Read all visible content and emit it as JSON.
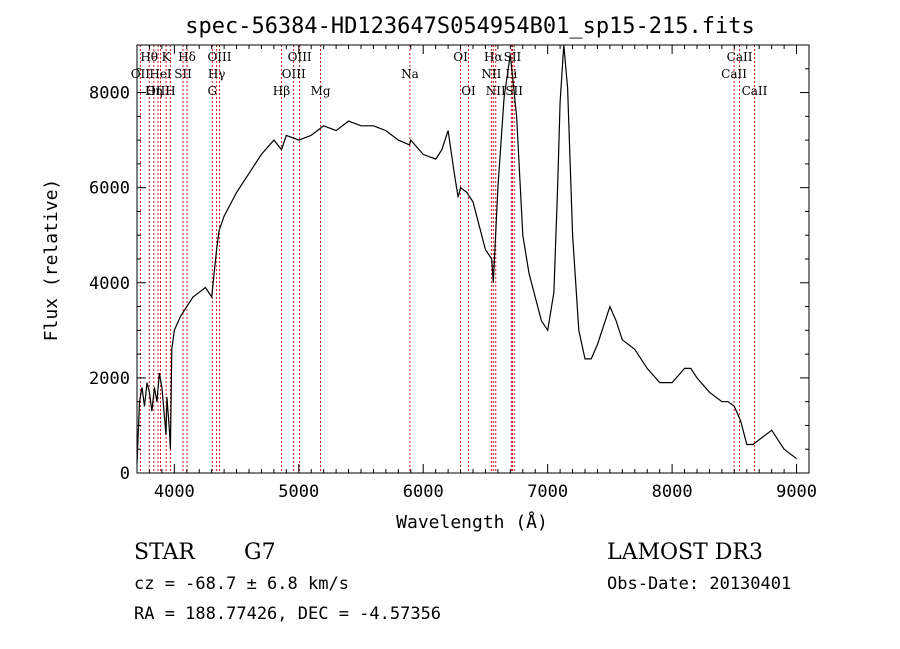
{
  "chart_data": {
    "type": "line",
    "title": "spec-56384-HD123647S054954B01_sp15-215.fits",
    "xlabel": "Wavelength (Å)",
    "ylabel": "Flux (relative)",
    "xlim": [
      3700,
      9100
    ],
    "ylim": [
      0,
      9000
    ],
    "x_ticks": [
      4000,
      5000,
      6000,
      7000,
      8000,
      9000
    ],
    "y_ticks": [
      0,
      2000,
      4000,
      6000,
      8000
    ],
    "grid": false,
    "line_color": "#000000",
    "marker_color": "#c00000",
    "spectrum": {
      "x": [
        3700,
        3720,
        3740,
        3760,
        3780,
        3800,
        3820,
        3840,
        3860,
        3880,
        3900,
        3920,
        3933,
        3940,
        3960,
        3968,
        3980,
        4000,
        4050,
        4100,
        4150,
        4200,
        4250,
        4300,
        4340,
        4360,
        4400,
        4500,
        4600,
        4700,
        4800,
        4861,
        4900,
        5000,
        5100,
        5200,
        5300,
        5400,
        5500,
        5600,
        5700,
        5800,
        5890,
        5900,
        6000,
        6100,
        6150,
        6200,
        6250,
        6280,
        6300,
        6350,
        6400,
        6450,
        6500,
        6550,
        6563,
        6600,
        6650,
        6700,
        6750,
        6800,
        6850,
        6900,
        6950,
        7000,
        7050,
        7080,
        7100,
        7130,
        7160,
        7200,
        7250,
        7300,
        7350,
        7400,
        7450,
        7500,
        7550,
        7600,
        7700,
        7800,
        7900,
        8000,
        8100,
        8150,
        8200,
        8300,
        8400,
        8450,
        8500,
        8550,
        8600,
        8650,
        8700,
        8800,
        8850,
        8900,
        9000
      ],
      "y": [
        200,
        1500,
        1800,
        1400,
        1900,
        1700,
        1300,
        1800,
        1500,
        2100,
        1800,
        1200,
        800,
        1600,
        900,
        500,
        2600,
        3000,
        3300,
        3500,
        3700,
        3800,
        3900,
        3700,
        4700,
        5100,
        5400,
        5900,
        6300,
        6700,
        7000,
        6800,
        7100,
        7000,
        7100,
        7300,
        7200,
        7400,
        7300,
        7300,
        7200,
        7000,
        6900,
        7000,
        6700,
        6600,
        6800,
        7200,
        6300,
        5800,
        6000,
        5900,
        5700,
        5200,
        4700,
        4500,
        4000,
        6000,
        7900,
        8800,
        7500,
        5000,
        4200,
        3700,
        3200,
        3000,
        3800,
        6000,
        7800,
        9000,
        8100,
        5000,
        3000,
        2400,
        2400,
        2700,
        3100,
        3500,
        3200,
        2800,
        2600,
        2200,
        1900,
        1900,
        2200,
        2200,
        2000,
        1700,
        1500,
        1500,
        1400,
        1100,
        600,
        600,
        700,
        900,
        700,
        500,
        300
      ]
    },
    "line_markers": [
      {
        "label": "Hθ",
        "x": 3798,
        "row": 1
      },
      {
        "label": "OII",
        "x": 3727,
        "row": 2
      },
      {
        "label": "OIII",
        "x": 3869,
        "row": 3
      },
      {
        "label": "HeI",
        "x": 3889,
        "row": 2
      },
      {
        "label": "Hη",
        "x": 3835,
        "row": 3
      },
      {
        "label": "K",
        "x": 3934,
        "row": 1
      },
      {
        "label": "H",
        "x": 3968,
        "row": 3
      },
      {
        "label": "Hδ",
        "x": 4102,
        "row": 1
      },
      {
        "label": "SII",
        "x": 4070,
        "row": 2
      },
      {
        "label": "OIII",
        "x": 4363,
        "row": 1
      },
      {
        "label": "Hγ",
        "x": 4340,
        "row": 2
      },
      {
        "label": "G",
        "x": 4305,
        "row": 3
      },
      {
        "label": "OIII",
        "x": 5007,
        "row": 1
      },
      {
        "label": "OIII",
        "x": 4959,
        "row": 2
      },
      {
        "label": "Hβ",
        "x": 4861,
        "row": 3
      },
      {
        "label": "Mg",
        "x": 5175,
        "row": 3
      },
      {
        "label": "Na",
        "x": 5893,
        "row": 2
      },
      {
        "label": "OI",
        "x": 6300,
        "row": 1
      },
      {
        "label": "OI",
        "x": 6364,
        "row": 3
      },
      {
        "label": "Hα",
        "x": 6563,
        "row": 1
      },
      {
        "label": "NII",
        "x": 6548,
        "row": 2
      },
      {
        "label": "NII",
        "x": 6583,
        "row": 3
      },
      {
        "label": "SII",
        "x": 6717,
        "row": 1
      },
      {
        "label": "SII",
        "x": 6731,
        "row": 3
      },
      {
        "label": "Li",
        "x": 6708,
        "row": 2
      },
      {
        "label": "CaII",
        "x": 8542,
        "row": 1
      },
      {
        "label": "CaII",
        "x": 8498,
        "row": 2
      },
      {
        "label": "CaII",
        "x": 8662,
        "row": 3
      }
    ]
  },
  "info": {
    "object_class": "STAR",
    "subclass": "G7",
    "survey": "LAMOST DR3",
    "cz": "cz = -68.7 ± 6.8 km/s",
    "obs_date": "Obs-Date: 20130401",
    "coords": "RA = 188.77426, DEC =  -4.57356"
  }
}
